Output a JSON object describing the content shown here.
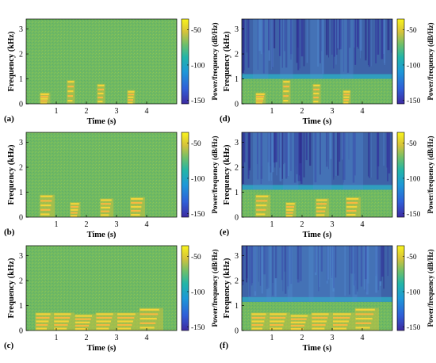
{
  "shared": {
    "xlabel": "Time (s)",
    "ylabel": "Frequency (kHz)",
    "cbar_label": "Power/frequency (dB/Hz)",
    "x_ticks": [
      "1",
      "2",
      "3",
      "4"
    ],
    "y_ticks": [
      "0",
      "1",
      "2",
      "3"
    ],
    "cbar_ticks": [
      "-50",
      "-100",
      "-150"
    ]
  },
  "colors": {
    "background_green": "#6fb860",
    "high_yellow": "#f4d43a",
    "peak_orange": "#f8b840",
    "low_blue": "#3e63a8",
    "deep_blue": "#3a3aa0",
    "mid_teal": "#38a8b8"
  },
  "chart_data": [
    {
      "type": "heatmap",
      "panel": "(a)",
      "xlabel": "Time (s)",
      "ylabel": "Frequency (kHz)",
      "xlim": [
        0,
        5
      ],
      "ylim": [
        0,
        3.4
      ],
      "clim": [
        -155,
        -35
      ],
      "x_ticks": [
        1,
        2,
        3,
        4
      ],
      "y_ticks": [
        0,
        1,
        2,
        3
      ],
      "cbar_ticks": [
        -50,
        -100,
        -150
      ],
      "background_level_db": -75,
      "masked_above_khz": null,
      "events": [
        {
          "t_start": 0.45,
          "t_end": 0.8,
          "f_max_khz": 0.45
        },
        {
          "t_start": 1.35,
          "t_end": 1.62,
          "f_max_khz": 0.95
        },
        {
          "t_start": 2.35,
          "t_end": 2.62,
          "f_max_khz": 0.8
        },
        {
          "t_start": 3.35,
          "t_end": 3.62,
          "f_max_khz": 0.55
        }
      ]
    },
    {
      "type": "heatmap",
      "panel": "(d)",
      "xlabel": "Time (s)",
      "ylabel": "Frequency (kHz)",
      "xlim": [
        0,
        5
      ],
      "ylim": [
        0,
        3.4
      ],
      "clim": [
        -155,
        -35
      ],
      "x_ticks": [
        1,
        2,
        3,
        4
      ],
      "y_ticks": [
        0,
        1,
        2,
        3
      ],
      "cbar_ticks": [
        -50,
        -100,
        -150
      ],
      "background_level_db": -75,
      "masked_above_khz": 1.0,
      "events": [
        {
          "t_start": 0.45,
          "t_end": 0.8,
          "f_max_khz": 0.45
        },
        {
          "t_start": 1.35,
          "t_end": 1.62,
          "f_max_khz": 0.95
        },
        {
          "t_start": 2.35,
          "t_end": 2.62,
          "f_max_khz": 0.8
        },
        {
          "t_start": 3.35,
          "t_end": 3.62,
          "f_max_khz": 0.55
        }
      ]
    },
    {
      "type": "heatmap",
      "panel": "(b)",
      "xlabel": "Time (s)",
      "ylabel": "Frequency (kHz)",
      "xlim": [
        0,
        5
      ],
      "ylim": [
        0,
        3.4
      ],
      "clim": [
        -155,
        -35
      ],
      "x_ticks": [
        1,
        2,
        3,
        4
      ],
      "y_ticks": [
        0,
        1,
        2,
        3
      ],
      "cbar_ticks": [
        -50,
        -100,
        -150
      ],
      "background_level_db": -75,
      "masked_above_khz": null,
      "events": [
        {
          "t_start": 0.45,
          "t_end": 0.95,
          "f_max_khz": 0.9
        },
        {
          "t_start": 1.45,
          "t_end": 1.8,
          "f_max_khz": 0.6
        },
        {
          "t_start": 2.45,
          "t_end": 2.9,
          "f_max_khz": 0.75
        },
        {
          "t_start": 3.45,
          "t_end": 3.95,
          "f_max_khz": 0.8
        }
      ]
    },
    {
      "type": "heatmap",
      "panel": "(e)",
      "xlabel": "Time (s)",
      "ylabel": "Frequency (kHz)",
      "xlim": [
        0,
        5
      ],
      "ylim": [
        0,
        3.4
      ],
      "clim": [
        -155,
        -35
      ],
      "x_ticks": [
        1,
        2,
        3,
        4
      ],
      "y_ticks": [
        0,
        1,
        2,
        3
      ],
      "cbar_ticks": [
        -50,
        -100,
        -150
      ],
      "background_level_db": -75,
      "masked_above_khz": 1.1,
      "events": [
        {
          "t_start": 0.45,
          "t_end": 0.95,
          "f_max_khz": 0.9
        },
        {
          "t_start": 1.45,
          "t_end": 1.8,
          "f_max_khz": 0.6
        },
        {
          "t_start": 2.45,
          "t_end": 2.9,
          "f_max_khz": 0.75
        },
        {
          "t_start": 3.45,
          "t_end": 3.95,
          "f_max_khz": 0.8
        }
      ]
    },
    {
      "type": "heatmap",
      "panel": "(c)",
      "xlabel": "Time (s)",
      "ylabel": "Frequency (kHz)",
      "xlim": [
        0,
        5
      ],
      "ylim": [
        0,
        3.4
      ],
      "clim": [
        -155,
        -35
      ],
      "x_ticks": [
        1,
        2,
        3,
        4
      ],
      "y_ticks": [
        0,
        1,
        2,
        3
      ],
      "cbar_ticks": [
        -50,
        -100,
        -150
      ],
      "background_level_db": -75,
      "masked_above_khz": null,
      "events": [
        {
          "t_start": 0.3,
          "t_end": 0.9,
          "f_max_khz": 0.72
        },
        {
          "t_start": 0.9,
          "t_end": 1.6,
          "f_max_khz": 0.72
        },
        {
          "t_start": 1.6,
          "t_end": 2.3,
          "f_max_khz": 0.65
        },
        {
          "t_start": 2.3,
          "t_end": 3.0,
          "f_max_khz": 0.72
        },
        {
          "t_start": 3.0,
          "t_end": 3.75,
          "f_max_khz": 0.72
        },
        {
          "t_start": 3.75,
          "t_end": 4.55,
          "f_max_khz": 0.9
        }
      ]
    },
    {
      "type": "heatmap",
      "panel": "(f)",
      "xlabel": "Time (s)",
      "ylabel": "Frequency (kHz)",
      "xlim": [
        0,
        5
      ],
      "ylim": [
        0,
        3.4
      ],
      "clim": [
        -155,
        -35
      ],
      "x_ticks": [
        1,
        2,
        3,
        4
      ],
      "y_ticks": [
        0,
        1,
        2,
        3
      ],
      "cbar_ticks": [
        -50,
        -100,
        -150
      ],
      "background_level_db": -75,
      "masked_above_khz": 1.15,
      "events": [
        {
          "t_start": 0.3,
          "t_end": 0.9,
          "f_max_khz": 0.72
        },
        {
          "t_start": 0.9,
          "t_end": 1.6,
          "f_max_khz": 0.72
        },
        {
          "t_start": 1.6,
          "t_end": 2.3,
          "f_max_khz": 0.65
        },
        {
          "t_start": 2.3,
          "t_end": 3.0,
          "f_max_khz": 0.72
        },
        {
          "t_start": 3.0,
          "t_end": 3.75,
          "f_max_khz": 0.72
        },
        {
          "t_start": 3.75,
          "t_end": 4.55,
          "f_max_khz": 0.9
        }
      ]
    }
  ]
}
